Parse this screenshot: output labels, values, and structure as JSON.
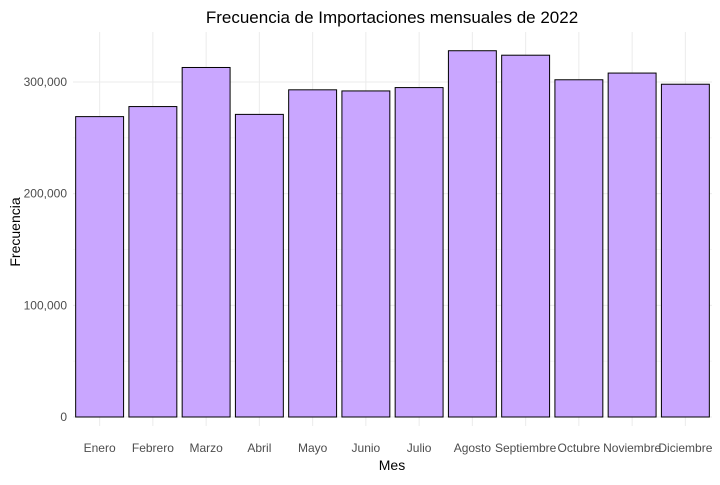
{
  "chart_data": {
    "type": "bar",
    "title": "Frecuencia de Importaciones mensuales de 2022",
    "xlabel": "Mes",
    "ylabel": "Frecuencia",
    "categories": [
      "Enero",
      "Febrero",
      "Marzo",
      "Abril",
      "Mayo",
      "Junio",
      "Julio",
      "Agosto",
      "Septiembre",
      "Octubre",
      "Noviembre",
      "Diciembre"
    ],
    "values": [
      269000,
      278000,
      313000,
      271000,
      293000,
      292000,
      295000,
      328000,
      324000,
      302000,
      308000,
      298000
    ],
    "ylim": [
      0,
      345000
    ],
    "yticks": [
      0,
      100000,
      200000,
      300000
    ],
    "ytick_labels": [
      "0",
      "100,000",
      "200,000",
      "300,000"
    ],
    "grid": true,
    "legend": "none",
    "colors": {
      "bar_fill": "#c9a6ff",
      "bar_stroke": "#000000",
      "grid": "#ebebeb"
    }
  }
}
